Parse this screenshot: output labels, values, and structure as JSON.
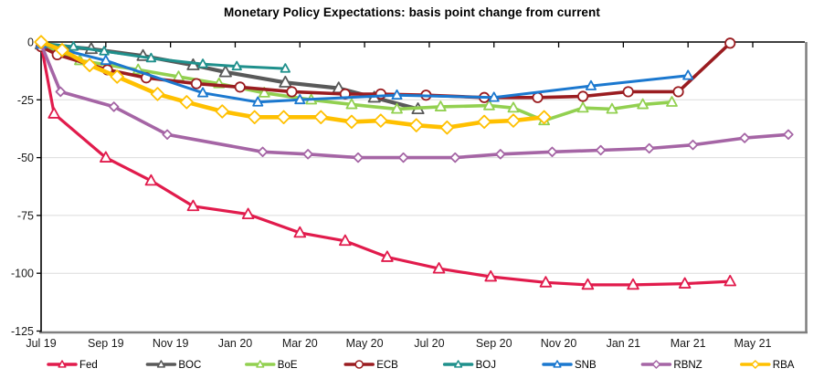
{
  "title": "Monetary Policy Expectations: basis point change from current",
  "chart_data": {
    "type": "line",
    "title": "Monetary Policy Expectations: basis point change from current",
    "x_unit": "months since Jul 2019",
    "x_axis": {
      "tick_labels": [
        "Jul 19",
        "Sep 19",
        "Nov 19",
        "Jan 20",
        "Mar 20",
        "May 20",
        "Jul 20",
        "Sep 20",
        "Nov 20",
        "Jan 21",
        "Mar 21",
        "May 21"
      ],
      "tick_months": [
        0,
        2,
        4,
        6,
        8,
        10,
        12,
        14,
        16,
        18,
        20,
        22
      ],
      "domain_months": [
        0,
        23.6
      ]
    },
    "y_axis": {
      "ticks": [
        0,
        -25,
        -50,
        -75,
        -100,
        -125
      ],
      "range": [
        -125,
        0
      ],
      "unit": "basis points"
    },
    "grid": "horizontal gridlines at each y tick",
    "legend_position": "bottom",
    "series": [
      {
        "name": "Fed",
        "color": "#e11b4c",
        "marker": "triangle",
        "marker_size": 6.2,
        "line_width": 3.2,
        "points": [
          [
            0,
            -1
          ],
          [
            0.4,
            -31
          ],
          [
            2,
            -50
          ],
          [
            3.4,
            -60
          ],
          [
            4.7,
            -71
          ],
          [
            6.4,
            -74.5
          ],
          [
            8,
            -82.5
          ],
          [
            9.4,
            -86
          ],
          [
            10.7,
            -93
          ],
          [
            12.3,
            -98
          ],
          [
            13.9,
            -101.5
          ],
          [
            15.6,
            -104
          ],
          [
            16.9,
            -105
          ],
          [
            18.3,
            -105
          ],
          [
            19.9,
            -104.5
          ],
          [
            21.3,
            -103.5
          ]
        ]
      },
      {
        "name": "BOC",
        "color": "#595959",
        "marker": "triangle",
        "marker_size": 6.5,
        "line_width": 4.2,
        "points": [
          [
            0,
            -1
          ],
          [
            1.55,
            -3
          ],
          [
            3.15,
            -6
          ],
          [
            4.7,
            -10
          ],
          [
            5.7,
            -13
          ],
          [
            7.55,
            -17.5
          ],
          [
            9.2,
            -20
          ],
          [
            10.3,
            -24
          ],
          [
            11.65,
            -29
          ]
        ]
      },
      {
        "name": "BoE",
        "color": "#92d050",
        "marker": "triangle",
        "marker_size": 5.8,
        "line_width": 3.6,
        "points": [
          [
            0,
            -1
          ],
          [
            1.2,
            -8
          ],
          [
            3,
            -12
          ],
          [
            4.25,
            -15
          ],
          [
            5.5,
            -18
          ],
          [
            6.9,
            -22
          ],
          [
            8.35,
            -25
          ],
          [
            9.6,
            -27
          ],
          [
            11,
            -29
          ],
          [
            12.35,
            -28
          ],
          [
            13.85,
            -27.5
          ],
          [
            14.6,
            -28.5
          ],
          [
            15.55,
            -34
          ],
          [
            16.75,
            -28.5
          ],
          [
            17.65,
            -29
          ],
          [
            18.6,
            -27
          ],
          [
            19.5,
            -26
          ]
        ]
      },
      {
        "name": "ECB",
        "color": "#9a1c20",
        "marker": "circle",
        "marker_size": 5.2,
        "line_width": 3.6,
        "points": [
          [
            0,
            -2
          ],
          [
            0.5,
            -5.5
          ],
          [
            2.05,
            -12
          ],
          [
            3.25,
            -15.5
          ],
          [
            4.8,
            -18
          ],
          [
            6.15,
            -19.5
          ],
          [
            7.75,
            -21.5
          ],
          [
            9.4,
            -22.5
          ],
          [
            10.5,
            -22.5
          ],
          [
            11.9,
            -23
          ],
          [
            13.7,
            -24
          ],
          [
            15.35,
            -24
          ],
          [
            16.75,
            -23.5
          ],
          [
            18.15,
            -21.5
          ],
          [
            19.7,
            -21.5
          ],
          [
            21.3,
            -0.5
          ]
        ]
      },
      {
        "name": "BOJ",
        "color": "#1f908c",
        "marker": "triangle",
        "marker_size": 5.0,
        "line_width": 3.0,
        "points": [
          [
            0,
            -0.5
          ],
          [
            1,
            -2
          ],
          [
            1.95,
            -4
          ],
          [
            3.4,
            -7
          ],
          [
            5,
            -9.5
          ],
          [
            6.05,
            -10.5
          ],
          [
            7.55,
            -11.5
          ]
        ]
      },
      {
        "name": "SNB",
        "color": "#1b78cf",
        "marker": "triangle",
        "marker_size": 5.4,
        "line_width": 3.0,
        "points": [
          [
            0,
            -1
          ],
          [
            2,
            -8
          ],
          [
            5,
            -22
          ],
          [
            6.7,
            -26
          ],
          [
            8,
            -25
          ],
          [
            11,
            -23
          ],
          [
            14,
            -24
          ],
          [
            17,
            -19
          ],
          [
            20,
            -14.5
          ]
        ]
      },
      {
        "name": "RBNZ",
        "color": "#a565a5",
        "marker": "diamond",
        "marker_size": 4.8,
        "line_width": 3.6,
        "points": [
          [
            0,
            -1
          ],
          [
            0.6,
            -21.5
          ],
          [
            2.25,
            -28
          ],
          [
            3.9,
            -40
          ],
          [
            6.85,
            -47.5
          ],
          [
            8.25,
            -48.5
          ],
          [
            9.8,
            -50
          ],
          [
            11.2,
            -50
          ],
          [
            12.8,
            -50
          ],
          [
            14.2,
            -48.5
          ],
          [
            15.8,
            -47.5
          ],
          [
            17.3,
            -46.8
          ],
          [
            18.8,
            -46
          ],
          [
            20.15,
            -44.5
          ],
          [
            21.75,
            -41.5
          ],
          [
            23.1,
            -40
          ]
        ]
      },
      {
        "name": "RBA",
        "color": "#ffc000",
        "marker": "diamond",
        "marker_size": 6.8,
        "line_width": 4.6,
        "points": [
          [
            0,
            0
          ],
          [
            0.65,
            -3.5
          ],
          [
            1.5,
            -10
          ],
          [
            2.35,
            -15
          ],
          [
            3.6,
            -22.5
          ],
          [
            4.5,
            -26
          ],
          [
            5.6,
            -30
          ],
          [
            6.6,
            -32.5
          ],
          [
            7.5,
            -32.5
          ],
          [
            8.65,
            -32.5
          ],
          [
            9.6,
            -34.5
          ],
          [
            10.5,
            -34
          ],
          [
            11.6,
            -36
          ],
          [
            12.55,
            -37
          ],
          [
            13.7,
            -34.5
          ],
          [
            14.6,
            -34
          ],
          [
            15.55,
            -32.5
          ]
        ]
      }
    ]
  }
}
